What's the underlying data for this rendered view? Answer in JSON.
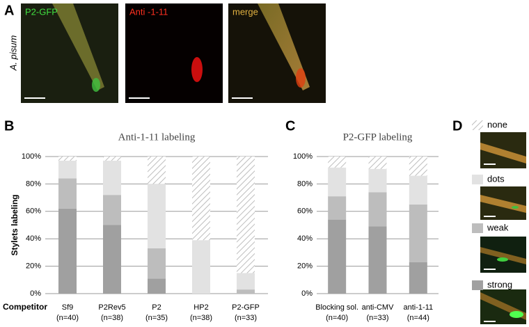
{
  "panels": {
    "a_label": "A",
    "b_label": "B",
    "c_label": "C",
    "d_label": "D",
    "species": "A. pisum",
    "image_titles": [
      "P2-GFP",
      "Anti -1-11",
      "merge"
    ],
    "competitor_label": "Competitor"
  },
  "chart_data": [
    {
      "type": "stacked-bar",
      "title": "Anti-1-11 labeling",
      "y_label": "Stylets labeling",
      "categories": [
        "Sf9",
        "P2Rev5",
        "P2",
        "HP2",
        "P2-GFP"
      ],
      "category_notes": [
        "(n=40)",
        "(n=38)",
        "(n=35)",
        "(n=38)",
        "(n=33)"
      ],
      "ylim": [
        0,
        100
      ],
      "yticks": [
        {
          "value": 0,
          "label": "0%"
        },
        {
          "value": 20,
          "label": "20%"
        },
        {
          "value": 40,
          "label": "40%"
        },
        {
          "value": 60,
          "label": "60%"
        },
        {
          "value": 80,
          "label": "80%"
        },
        {
          "value": 100,
          "label": "100%"
        }
      ],
      "grid": true,
      "series": [
        {
          "name": "strong",
          "color": "#a0a0a0",
          "values": [
            62,
            50,
            11,
            0,
            0
          ]
        },
        {
          "name": "weak",
          "color": "#bdbdbd",
          "values": [
            22,
            22,
            22,
            0,
            3
          ]
        },
        {
          "name": "dots",
          "color": "#e2e2e2",
          "values": [
            13,
            25,
            47,
            39,
            12
          ]
        },
        {
          "name": "none",
          "color": "#c4c4c4",
          "hatch": true,
          "values": [
            3,
            3,
            20,
            61,
            85
          ]
        }
      ]
    },
    {
      "type": "stacked-bar",
      "title": "P2-GFP labeling",
      "categories": [
        "Blocking sol.",
        "anti-CMV",
        "anti-1-11"
      ],
      "category_notes": [
        "(n=40)",
        "(n=33)",
        "(n=44)"
      ],
      "ylim": [
        0,
        100
      ],
      "yticks": [
        {
          "value": 0,
          "label": "0%"
        },
        {
          "value": 20,
          "label": "20%"
        },
        {
          "value": 40,
          "label": "40%"
        },
        {
          "value": 60,
          "label": "60%"
        },
        {
          "value": 80,
          "label": "80%"
        },
        {
          "value": 100,
          "label": "100%"
        }
      ],
      "grid": true,
      "series": [
        {
          "color": "#a0a0a0",
          "values": [
            54,
            49,
            23
          ]
        },
        {
          "color": "#bdbdbd",
          "values": [
            17,
            25,
            42
          ]
        },
        {
          "color": "#e2e2e2",
          "values": [
            21,
            17,
            21
          ]
        },
        {
          "color": "#c4c4c4",
          "hatch": true,
          "values": [
            8,
            9,
            14
          ]
        }
      ]
    }
  ]
}
